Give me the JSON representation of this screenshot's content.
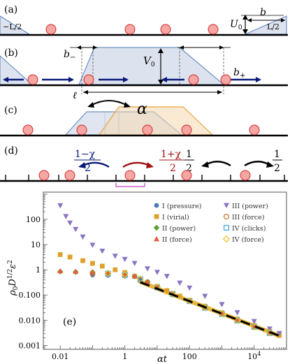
{
  "panels": {
    "a": {
      "tag": "(a)",
      "left_bound": "−L/2",
      "right_bound": "L/2",
      "height_label": "U",
      "height_sub": "0",
      "width_label": "b"
    },
    "b": {
      "tag": "(b)",
      "height_label": "V",
      "height_sub": "0",
      "bminus_label": "b",
      "bminus_sub": "−",
      "bplus_label": "b",
      "bplus_sub": "+",
      "ell_label": "ℓ"
    },
    "c": {
      "tag": "(c)",
      "rate_label": "α"
    },
    "d": {
      "tag": "(d)",
      "left_num": "1−χ",
      "left_den": "2",
      "right_num": "1+χ",
      "right_den": "2",
      "sym_left_num": "1",
      "sym_left_den": "2",
      "sym_right_num": "1",
      "sym_right_den": "2"
    },
    "e": {
      "tag": "(e)"
    }
  },
  "colors": {
    "particle_fill": "#f4a7a3",
    "particle_stroke": "#d62728",
    "potential_fill": "#dce3ef",
    "potential_stroke": "#6f8fc1",
    "shifted_stroke": "#e8a33d",
    "arrow_blue": "#0b1a7a",
    "arrow_red": "#a01010",
    "dash_line": "#000000",
    "gold_line": "#e8b73a",
    "pink_bar": "#d98ad6"
  },
  "chart_data": {
    "type": "scatter",
    "xlabel": "αt",
    "ylabel": "ρ₀D¹ᐟ²ε²",
    "ylabel_parts": {
      "base": "ρ",
      "sub0": "0",
      "D": "D",
      "exp": "1/2",
      "eps": "ε",
      "exp2": "2"
    },
    "x_log": true,
    "y_log": true,
    "xlim": [
      0.003,
      100000
    ],
    "ylim": [
      0.0007,
      1200
    ],
    "x_ticks": [
      {
        "v": 0.01,
        "label": "0.01"
      },
      {
        "v": 1,
        "label": "1"
      },
      {
        "v": 100,
        "label": "100"
      },
      {
        "v": 10000,
        "label": "10",
        "sup": "4"
      }
    ],
    "y_ticks": [
      {
        "v": 0.001,
        "label": "0.001"
      },
      {
        "v": 0.01,
        "label": "0.010"
      },
      {
        "v": 0.1,
        "label": "0.100"
      },
      {
        "v": 1,
        "label": "1"
      },
      {
        "v": 10,
        "label": "10"
      },
      {
        "v": 100,
        "label": "100"
      }
    ],
    "legend_position": "top-right",
    "series": [
      {
        "name": "I (pressure)",
        "marker": "circle",
        "color": "#4a78b8",
        "x": [
          0.1,
          0.3,
          1,
          3,
          10,
          30,
          100,
          300,
          1000,
          3000,
          10000,
          30000
        ],
        "y": [
          0.62,
          0.6,
          0.56,
          0.4,
          0.19,
          0.1,
          0.055,
          0.03,
          0.017,
          0.0095,
          0.0054,
          0.0031
        ]
      },
      {
        "name": "I (virial)",
        "marker": "square",
        "color": "#e0a12c",
        "x": [
          0.01,
          0.02,
          0.05,
          0.1,
          0.2,
          0.5,
          1,
          2,
          5,
          10,
          20,
          50,
          100,
          300,
          1000,
          3000,
          10000,
          30000,
          60000
        ],
        "y": [
          4.0,
          3.2,
          2.3,
          1.8,
          1.4,
          1.0,
          0.78,
          0.55,
          0.32,
          0.22,
          0.15,
          0.09,
          0.062,
          0.036,
          0.02,
          0.011,
          0.0062,
          0.0036,
          0.0025
        ]
      },
      {
        "name": "II (power)",
        "marker": "diamond",
        "color": "#5aa02c",
        "x": [
          0.01,
          0.03,
          0.1,
          0.3,
          1,
          2,
          5,
          10,
          30,
          100,
          300,
          1000,
          3000,
          10000,
          30000
        ],
        "y": [
          0.85,
          0.82,
          0.8,
          0.76,
          0.68,
          0.55,
          0.33,
          0.2,
          0.11,
          0.06,
          0.034,
          0.019,
          0.011,
          0.006,
          0.0034
        ]
      },
      {
        "name": "II (force)",
        "marker": "triangle-up",
        "color": "#e55a3c",
        "x": [
          0.01,
          0.03,
          0.1,
          0.3,
          1,
          2,
          5,
          10,
          30,
          100,
          300,
          1000,
          3000,
          10000,
          30000
        ],
        "y": [
          0.9,
          0.86,
          0.82,
          0.78,
          0.7,
          0.57,
          0.34,
          0.21,
          0.11,
          0.061,
          0.034,
          0.019,
          0.011,
          0.006,
          0.0034
        ]
      },
      {
        "name": "III (power)",
        "marker": "triangle-down",
        "color": "#8a73c2",
        "x": [
          0.01,
          0.015,
          0.02,
          0.03,
          0.05,
          0.1,
          0.2,
          0.5,
          1,
          2,
          5,
          10,
          20,
          50,
          100,
          300,
          1000,
          3000,
          10000,
          30000,
          60000
        ],
        "y": [
          350,
          130,
          72,
          40,
          20,
          9.5,
          5.5,
          3.5,
          2.6,
          1.8,
          1.1,
          0.8,
          0.55,
          0.3,
          0.19,
          0.09,
          0.042,
          0.02,
          0.009,
          0.0045,
          0.003
        ]
      },
      {
        "name": "III (force)",
        "marker": "circle-open",
        "color": "#c07a2a",
        "x": [
          0.1,
          0.3,
          1,
          3,
          10,
          30,
          100,
          300,
          1000,
          3000,
          10000,
          30000
        ],
        "y": [
          0.7,
          0.68,
          0.6,
          0.4,
          0.2,
          0.11,
          0.058,
          0.032,
          0.018,
          0.0098,
          0.0055,
          0.0032
        ]
      },
      {
        "name": "IV (clicks)",
        "marker": "square-open",
        "color": "#4aa8d8",
        "x": [
          0.3,
          1,
          3,
          10,
          30,
          100,
          300,
          1000,
          3000,
          10000,
          30000
        ],
        "y": [
          0.7,
          0.62,
          0.42,
          0.2,
          0.11,
          0.057,
          0.031,
          0.0175,
          0.0097,
          0.0054,
          0.0031
        ]
      },
      {
        "name": "IV (force)",
        "marker": "diamond-open",
        "color": "#e8c52a",
        "x": [
          0.3,
          1,
          3,
          10,
          30,
          100,
          300,
          1000,
          3000,
          10000,
          30000
        ],
        "y": [
          0.72,
          0.64,
          0.43,
          0.21,
          0.11,
          0.058,
          0.032,
          0.018,
          0.0099,
          0.0055,
          0.0032
        ]
      }
    ],
    "asymptote": {
      "style": "dashed",
      "x": [
        3,
        60000
      ],
      "y": [
        0.32,
        0.0024
      ]
    },
    "gold_band": {
      "x": [
        3,
        60000
      ],
      "y": [
        0.33,
        0.0024
      ]
    }
  }
}
